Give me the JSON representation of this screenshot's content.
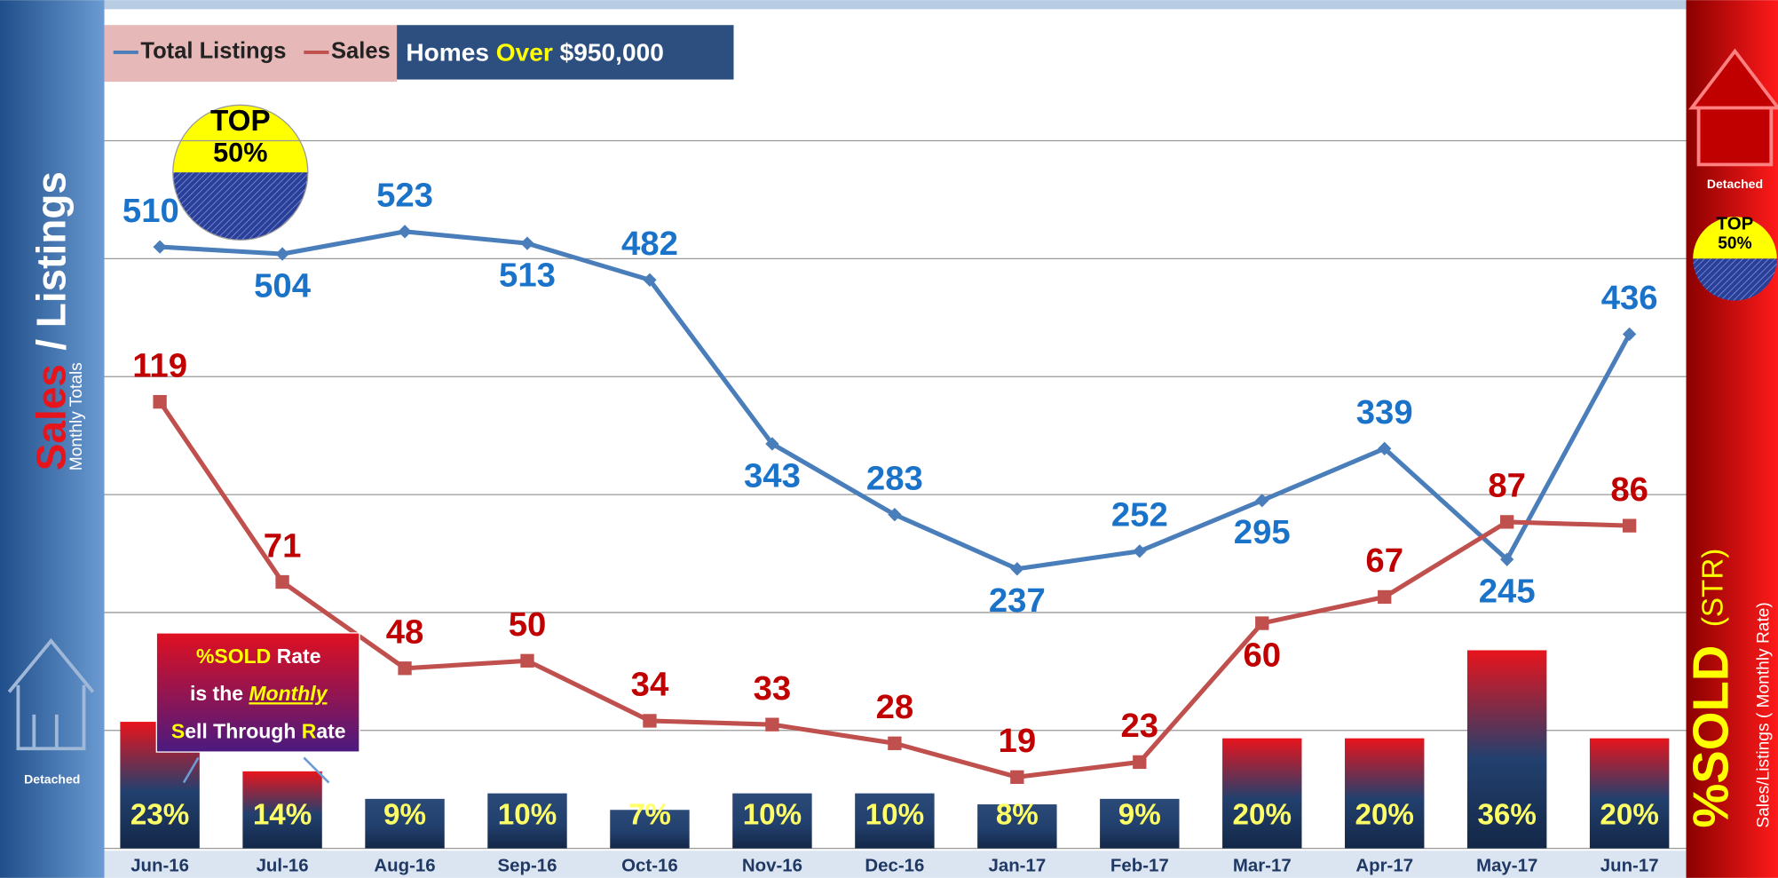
{
  "chart_data": {
    "type": "line",
    "categories": [
      "Jun-16",
      "Jul-16",
      "Aug-16",
      "Sep-16",
      "Oct-16",
      "Nov-16",
      "Dec-16",
      "Jan-17",
      "Feb-17",
      "Mar-17",
      "Apr-17",
      "May-17",
      "Jun-17"
    ],
    "series": [
      {
        "name": "Total Listings",
        "color": "#4a7ebb",
        "values": [
          510,
          504,
          523,
          513,
          482,
          343,
          283,
          237,
          252,
          295,
          339,
          245,
          436
        ]
      },
      {
        "name": "Sales",
        "color": "#c0504d",
        "axis": "y2",
        "values": [
          119,
          71,
          48,
          50,
          34,
          33,
          28,
          19,
          23,
          60,
          67,
          87,
          86
        ]
      }
    ],
    "bars": {
      "name": "%SOLD",
      "values": [
        23,
        14,
        9,
        10,
        7,
        10,
        10,
        8,
        9,
        20,
        20,
        36,
        20
      ],
      "value_labels": [
        "23%",
        "14%",
        "9%",
        "10%",
        "7%",
        "10%",
        "10%",
        "8%",
        "9%",
        "20%",
        "20%",
        "36%",
        "20%"
      ],
      "colors": [
        "#e8141c",
        "#e8141c",
        "#2c4a78",
        "#2c4a78",
        "#2c4a78",
        "#2c4a78",
        "#2c4a78",
        "#2c4a78",
        "#2c4a78",
        "#e8141c",
        "#e8141c",
        "#e8141c",
        "#e8141c"
      ],
      "ylim": [
        0,
        150
      ]
    },
    "ylim": [
      0,
      700
    ],
    "yticks": [
      0,
      100,
      200,
      300,
      400,
      500,
      600
    ],
    "y2lim": [
      0,
      220
    ],
    "grid": true,
    "legend_title": [
      "Homes ",
      "Over",
      " $950,000"
    ],
    "left_title": [
      "Sales",
      "/ Listings"
    ],
    "left_subtitle": "Monthly Totals",
    "right_title": [
      "%SOLD",
      "(STR)"
    ],
    "right_subtitle": "Sales/Listings ( Monthly Rate)",
    "badge": [
      "TOP",
      "50%"
    ],
    "house_label": "Detached",
    "callout": [
      [
        "%SOLD",
        " Rate"
      ],
      [
        "is the ",
        "Monthly"
      ],
      [
        "S",
        "ell Through ",
        "R",
        "ate"
      ]
    ]
  }
}
